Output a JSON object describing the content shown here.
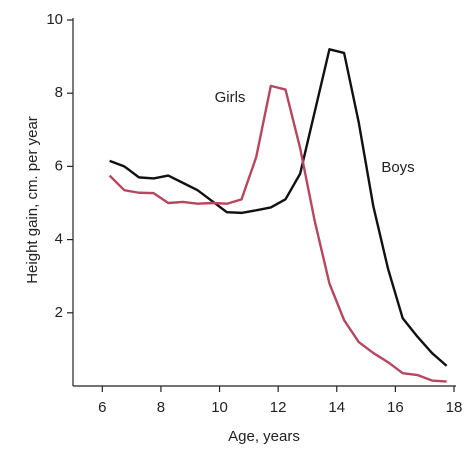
{
  "chart_data": {
    "type": "line",
    "x_label": "Age, years",
    "y_label": "Height gain, cm. per year",
    "xlim": [
      5,
      18
    ],
    "xticks": [
      6,
      8,
      10,
      12,
      14,
      16,
      18
    ],
    "ylim": [
      0,
      10
    ],
    "yticks": [
      2,
      4,
      6,
      8,
      10
    ],
    "series": [
      {
        "name": "Boys",
        "color": "#111111",
        "x": [
          6.25,
          6.75,
          7.25,
          7.75,
          8.25,
          8.75,
          9.25,
          9.75,
          10.25,
          10.75,
          11.25,
          11.75,
          12.25,
          12.75,
          13.25,
          13.75,
          14.25,
          14.75,
          15.25,
          15.75,
          16.25,
          16.75,
          17.25,
          17.75
        ],
        "values": [
          6.15,
          6.0,
          5.7,
          5.67,
          5.75,
          5.55,
          5.35,
          5.05,
          4.75,
          4.73,
          4.8,
          4.88,
          5.1,
          5.8,
          7.5,
          9.2,
          9.1,
          7.2,
          4.9,
          3.2,
          1.85,
          1.35,
          0.9,
          0.55
        ]
      },
      {
        "name": "Girls",
        "color": "#b5475e",
        "x": [
          6.25,
          6.75,
          7.25,
          7.75,
          8.25,
          8.75,
          9.25,
          9.75,
          10.25,
          10.75,
          11.25,
          11.75,
          12.25,
          12.75,
          13.25,
          13.75,
          14.25,
          14.75,
          15.25,
          15.75,
          16.25,
          16.75,
          17.25,
          17.75
        ],
        "values": [
          5.75,
          5.35,
          5.28,
          5.27,
          5.0,
          5.03,
          4.98,
          5.0,
          4.98,
          5.1,
          6.25,
          8.2,
          8.1,
          6.5,
          4.5,
          2.8,
          1.8,
          1.2,
          0.9,
          0.65,
          0.35,
          0.3,
          0.15,
          0.12
        ]
      }
    ]
  }
}
